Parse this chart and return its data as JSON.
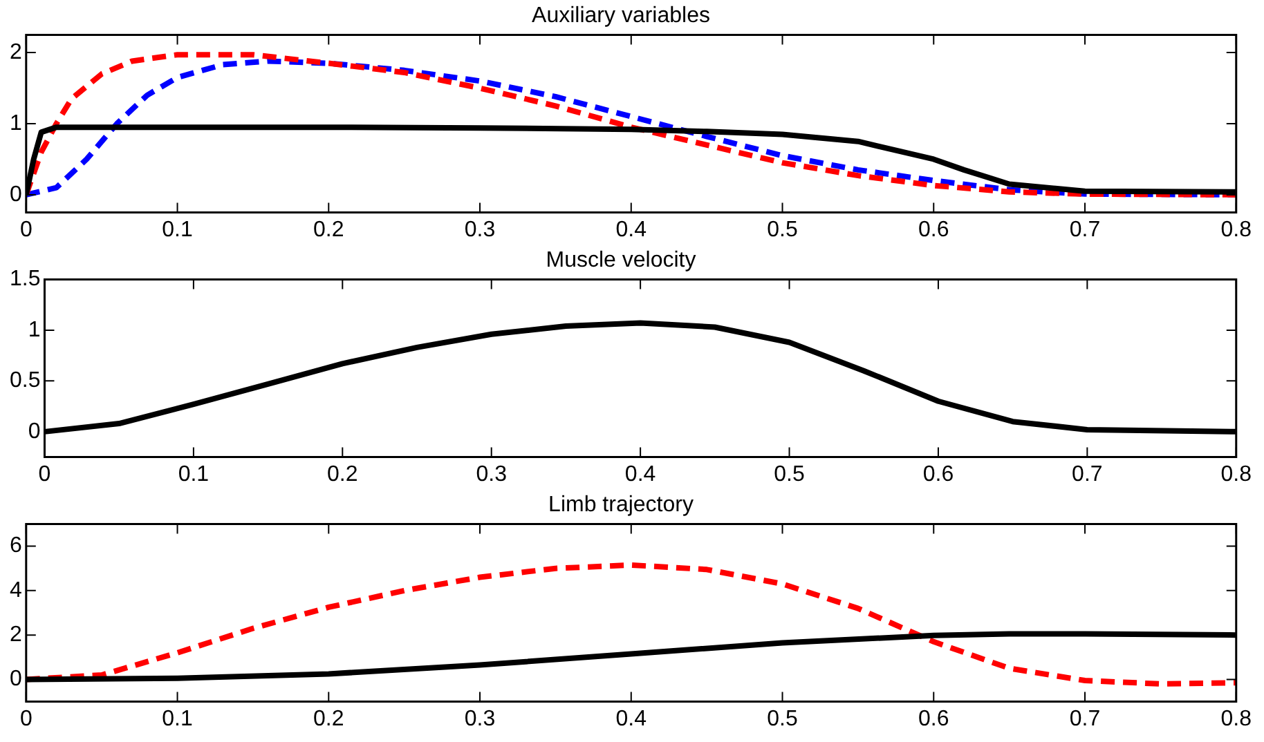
{
  "chart_data": [
    {
      "type": "line",
      "title": "Auxiliary variables",
      "xlim": [
        0,
        0.8
      ],
      "xticks": [
        0,
        0.1,
        0.2,
        0.3,
        0.4,
        0.5,
        0.6,
        0.7,
        0.8
      ],
      "ylim": [
        -0.25,
        2.25
      ],
      "yticks": [
        0,
        1,
        2
      ],
      "series": [
        {
          "color": "#000000",
          "line_style": "solid",
          "x": [
            0,
            0.005,
            0.01,
            0.02,
            0.1,
            0.2,
            0.3,
            0.4,
            0.45,
            0.5,
            0.55,
            0.6,
            0.62,
            0.65,
            0.7,
            0.8
          ],
          "values": [
            0,
            0.5,
            0.88,
            0.95,
            0.95,
            0.95,
            0.94,
            0.92,
            0.89,
            0.85,
            0.75,
            0.5,
            0.35,
            0.15,
            0.05,
            0.04
          ]
        },
        {
          "color": "#ff0000",
          "line_style": "dashed",
          "x": [
            0,
            0.01,
            0.02,
            0.03,
            0.05,
            0.07,
            0.1,
            0.15,
            0.2,
            0.25,
            0.3,
            0.35,
            0.4,
            0.45,
            0.5,
            0.55,
            0.6,
            0.65,
            0.7,
            0.8
          ],
          "values": [
            0,
            0.6,
            1.0,
            1.35,
            1.7,
            1.88,
            1.97,
            1.97,
            1.85,
            1.72,
            1.5,
            1.25,
            0.95,
            0.7,
            0.45,
            0.27,
            0.13,
            0.04,
            0.01,
            0
          ]
        },
        {
          "color": "#0000ff",
          "line_style": "dashed",
          "x": [
            0,
            0.02,
            0.04,
            0.06,
            0.08,
            0.1,
            0.13,
            0.16,
            0.2,
            0.25,
            0.3,
            0.35,
            0.4,
            0.45,
            0.5,
            0.55,
            0.6,
            0.65,
            0.7,
            0.8
          ],
          "values": [
            0,
            0.1,
            0.5,
            1.0,
            1.4,
            1.65,
            1.83,
            1.88,
            1.85,
            1.75,
            1.6,
            1.38,
            1.1,
            0.82,
            0.55,
            0.35,
            0.2,
            0.07,
            0.01,
            0
          ]
        }
      ]
    },
    {
      "type": "line",
      "title": "Muscle velocity",
      "xlim": [
        0,
        0.8
      ],
      "xticks": [
        0,
        0.1,
        0.2,
        0.3,
        0.4,
        0.5,
        0.6,
        0.7,
        0.8
      ],
      "ylim": [
        -0.25,
        1.5
      ],
      "yticks": [
        0,
        0.5,
        1,
        1.5
      ],
      "series": [
        {
          "color": "#000000",
          "line_style": "solid",
          "x": [
            0,
            0.05,
            0.1,
            0.15,
            0.2,
            0.25,
            0.3,
            0.35,
            0.4,
            0.45,
            0.5,
            0.55,
            0.6,
            0.65,
            0.7,
            0.8
          ],
          "values": [
            0,
            0.08,
            0.27,
            0.47,
            0.67,
            0.83,
            0.96,
            1.04,
            1.07,
            1.03,
            0.88,
            0.6,
            0.3,
            0.1,
            0.02,
            0
          ]
        }
      ]
    },
    {
      "type": "line",
      "title": "Limb trajectory",
      "xlim": [
        0,
        0.8
      ],
      "xticks": [
        0,
        0.1,
        0.2,
        0.3,
        0.4,
        0.5,
        0.6,
        0.7,
        0.8
      ],
      "ylim": [
        -1,
        7
      ],
      "yticks": [
        0,
        2,
        4,
        6
      ],
      "series": [
        {
          "color": "#000000",
          "line_style": "solid",
          "x": [
            0,
            0.1,
            0.2,
            0.3,
            0.4,
            0.5,
            0.6,
            0.65,
            0.7,
            0.8
          ],
          "values": [
            0,
            0.05,
            0.25,
            0.65,
            1.15,
            1.65,
            1.98,
            2.05,
            2.05,
            2.0
          ]
        },
        {
          "color": "#ff0000",
          "line_style": "dashed",
          "x": [
            0,
            0.05,
            0.1,
            0.15,
            0.2,
            0.25,
            0.3,
            0.35,
            0.4,
            0.45,
            0.5,
            0.55,
            0.6,
            0.65,
            0.7,
            0.75,
            0.8
          ],
          "values": [
            0,
            0.2,
            1.2,
            2.3,
            3.25,
            4.0,
            4.6,
            5.0,
            5.15,
            4.95,
            4.3,
            3.2,
            1.7,
            0.5,
            -0.05,
            -0.2,
            -0.15
          ]
        }
      ]
    }
  ]
}
